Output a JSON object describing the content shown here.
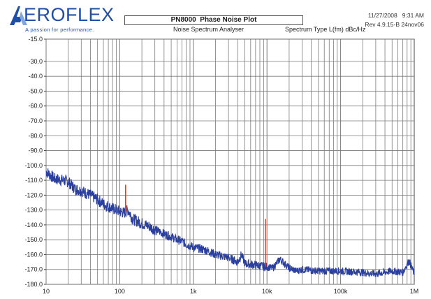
{
  "header": {
    "logo_text": "EROFLEX",
    "logo_tagline": "A passion for performance.",
    "title": "PN8000  Phase Noise Plot",
    "subtitle": "Noise Spectrum Analyser",
    "spectrum_type": "Spectrum Type  L(fm) dBc/Hz",
    "timestamp": "11/27/2008   9:31 AM",
    "revision": "Rev 4.9.15-B 24nov06"
  },
  "colors": {
    "trace": "#2b3f9e",
    "spur": "#e03c2c",
    "grid": "#7a7a7a",
    "brand": "#1f4fa8"
  },
  "chart_data": {
    "type": "line",
    "title": "PN8000  Phase Noise Plot",
    "xlabel": "",
    "ylabel": "",
    "xscale": "log",
    "xlim": [
      10,
      1000000
    ],
    "ylim": [
      -180,
      -15
    ],
    "grid": true,
    "x_tick_values": [
      10,
      100,
      1000,
      10000,
      100000,
      1000000
    ],
    "x_tick_labels": [
      "10",
      "100",
      "1k",
      "10k",
      "100k",
      "1M"
    ],
    "y_tick_values": [
      -15,
      -30,
      -40,
      -50,
      -60,
      -70,
      -80,
      -90,
      -100,
      -110,
      -120,
      -130,
      -140,
      -150,
      -160,
      -170,
      -180
    ],
    "y_tick_labels": [
      "-15.0",
      "-30.0",
      "-40.0",
      "-50.0",
      "-60.0",
      "-70.0",
      "-80.0",
      "-90.0",
      "-100.0",
      "-110.0",
      "-120.0",
      "-130.0",
      "-140.0",
      "-150.0",
      "-160.0",
      "-170.0",
      "-180.0"
    ],
    "series": [
      {
        "type": "line",
        "x": [
          10,
          13,
          17,
          20,
          25,
          30,
          40,
          50,
          60,
          80,
          100,
          115,
          130,
          150,
          200,
          250,
          300,
          400,
          500,
          600,
          700,
          800,
          1000,
          1500,
          2000,
          2500,
          3000,
          4000,
          4500,
          5000,
          7000,
          9000,
          12000,
          15000,
          20000,
          25000,
          30000,
          50000,
          100000,
          200000,
          300000,
          500000,
          700000,
          850000,
          1000000
        ],
        "y": [
          -104,
          -109,
          -110,
          -111,
          -116,
          -117,
          -120,
          -123,
          -126,
          -129,
          -131,
          -132,
          -130,
          -136,
          -139,
          -141,
          -143,
          -146,
          -148,
          -150,
          -151,
          -153,
          -155,
          -157,
          -160,
          -161,
          -162,
          -165,
          -160,
          -166,
          -167,
          -168,
          -169,
          -163,
          -169,
          -171,
          -170,
          -171,
          -171,
          -172,
          -173,
          -171,
          -172,
          -164,
          -173
        ]
      },
      {
        "type": "spurs",
        "x": [
          120,
          9500
        ],
        "y": [
          -113,
          -136
        ],
        "base": [
          -131,
          -168
        ]
      }
    ]
  }
}
